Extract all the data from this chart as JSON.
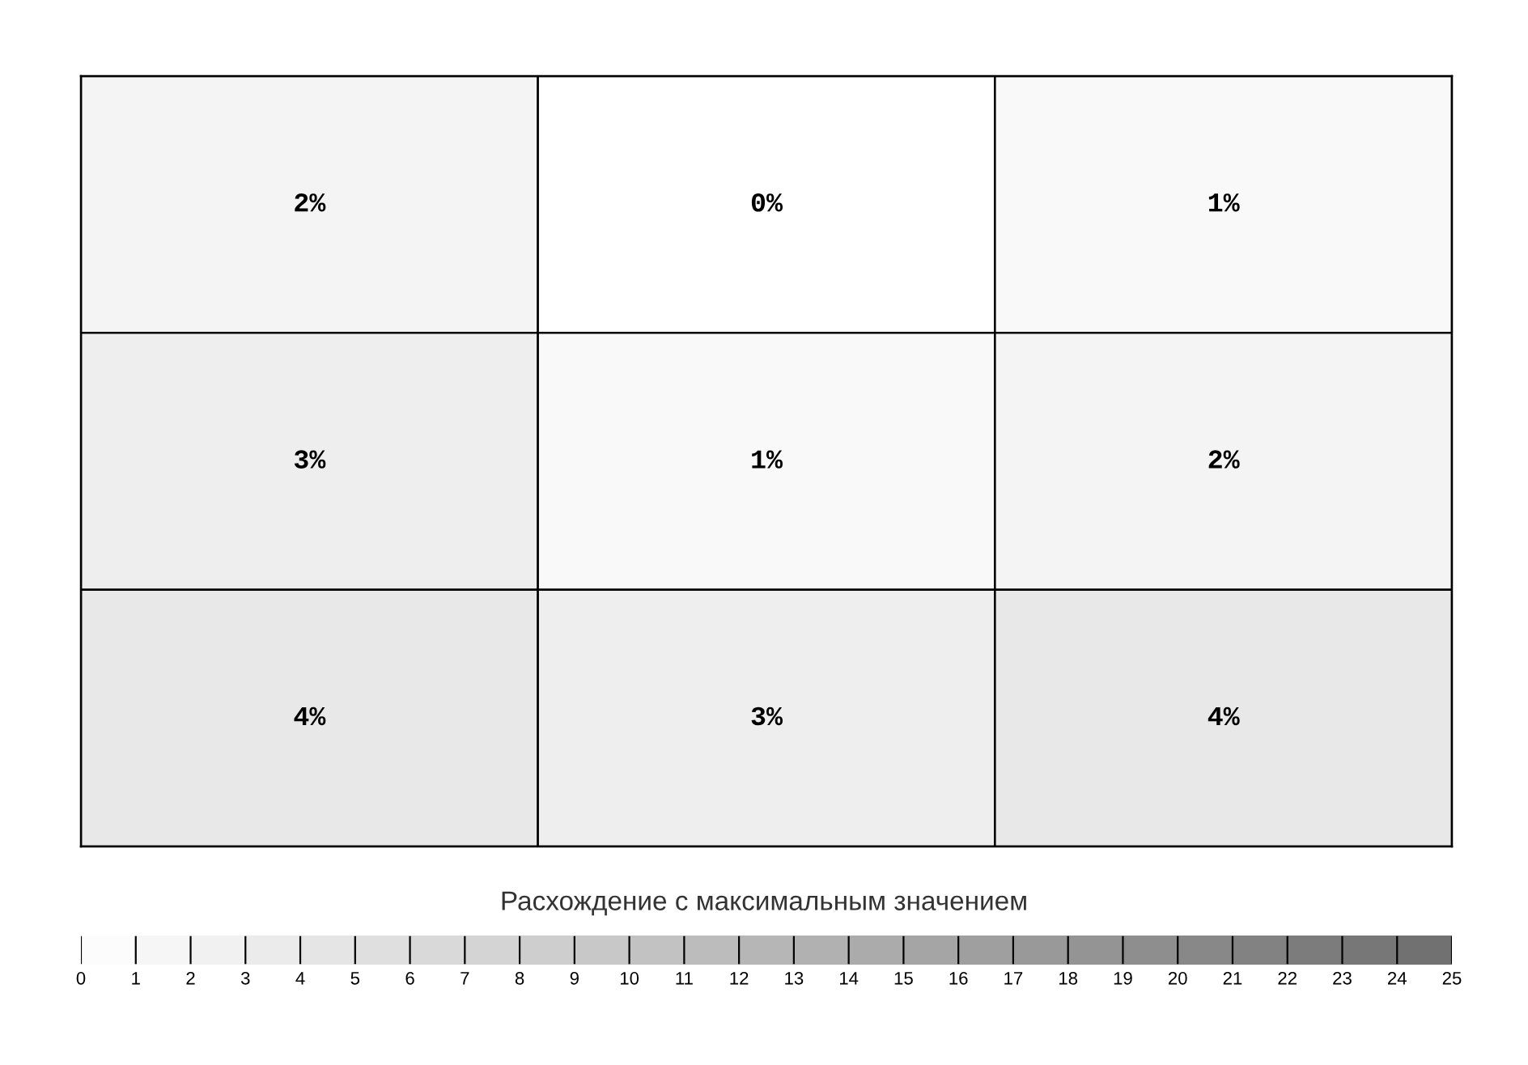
{
  "chart_data": {
    "type": "heatmap",
    "categories": [
      null,
      null,
      null
    ],
    "y_categories": [
      null,
      null,
      null
    ],
    "cells": [
      [
        2,
        0,
        1
      ],
      [
        3,
        1,
        2
      ],
      [
        4,
        3,
        4
      ]
    ],
    "cell_labels": [
      [
        "2%",
        "0%",
        "1%"
      ],
      [
        "3%",
        "1%",
        "2%"
      ],
      [
        "4%",
        "3%",
        "4%"
      ]
    ],
    "clim": [
      0,
      25
    ],
    "cticks": [
      0,
      1,
      2,
      3,
      4,
      5,
      6,
      7,
      8,
      9,
      10,
      11,
      12,
      13,
      14,
      15,
      16,
      17,
      18,
      19,
      20,
      21,
      22,
      23,
      24,
      25
    ],
    "clabel": "Расхождение с максимальным значением",
    "colors": [
      "#ffffff",
      "#6e6e6e"
    ]
  }
}
